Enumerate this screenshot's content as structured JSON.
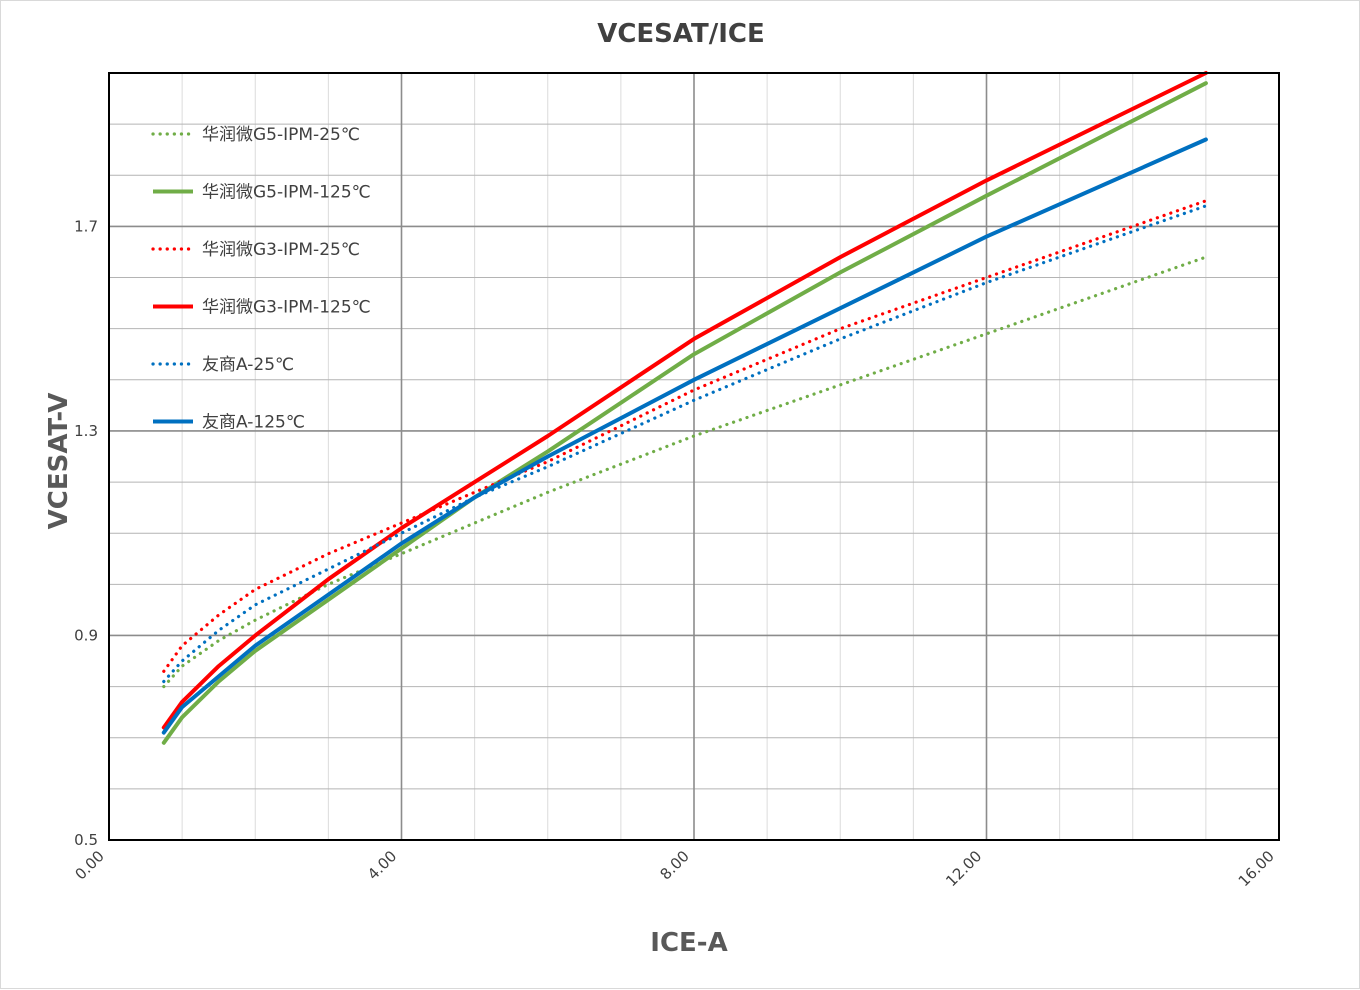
{
  "chart_data": {
    "type": "line",
    "title": "VCESAT/ICE",
    "xlabel": "ICE-A",
    "ylabel": "VCESAT-V",
    "xlim": [
      0,
      16
    ],
    "ylim": [
      0.5,
      2.0
    ],
    "x_ticks": [
      0,
      4,
      8,
      12,
      16
    ],
    "x_tick_labels": [
      "0.00",
      "4.00",
      "8.00",
      "12.00",
      "16.00"
    ],
    "y_ticks": [
      0.5,
      0.9,
      1.3,
      1.7
    ],
    "y_tick_labels": [
      "0.5",
      "0.9",
      "1.3",
      "1.7"
    ],
    "x_minor_step": 1,
    "y_minor_step": 0.1,
    "grid": true,
    "legend_position": "top-left",
    "series": [
      {
        "name": "华润微G5-IPM-25℃",
        "color": "#70ad47",
        "dash": "dotted",
        "x": [
          0.75,
          1,
          1.5,
          2,
          3,
          4,
          5,
          6,
          8,
          10,
          12,
          15
        ],
        "y": [
          0.8,
          0.84,
          0.89,
          0.93,
          1.0,
          1.06,
          1.12,
          1.18,
          1.29,
          1.39,
          1.49,
          1.64
        ]
      },
      {
        "name": "华润微G5-IPM-125℃",
        "color": "#70ad47",
        "dash": "solid",
        "x": [
          0.75,
          1,
          1.5,
          2,
          3,
          4,
          5,
          6,
          8,
          10,
          12,
          15
        ],
        "y": [
          0.69,
          0.74,
          0.81,
          0.87,
          0.97,
          1.07,
          1.17,
          1.26,
          1.45,
          1.61,
          1.76,
          1.98
        ]
      },
      {
        "name": "华润微G3-IPM-25℃",
        "color": "#ff0000",
        "dash": "dotted",
        "x": [
          0.75,
          1,
          1.5,
          2,
          3,
          4,
          5,
          6,
          8,
          10,
          12,
          15
        ],
        "y": [
          0.83,
          0.88,
          0.94,
          0.99,
          1.06,
          1.12,
          1.18,
          1.24,
          1.38,
          1.5,
          1.6,
          1.75
        ]
      },
      {
        "name": "华润微G3-IPM-125℃",
        "color": "#ff0000",
        "dash": "solid",
        "x": [
          0.75,
          1,
          1.5,
          2,
          3,
          4,
          5,
          6,
          8,
          10,
          12,
          15
        ],
        "y": [
          0.72,
          0.77,
          0.84,
          0.9,
          1.01,
          1.11,
          1.2,
          1.29,
          1.48,
          1.64,
          1.79,
          2.0
        ]
      },
      {
        "name": "友商A-25℃",
        "color": "#0070c0",
        "dash": "dotted",
        "x": [
          0.75,
          1,
          1.5,
          2,
          3,
          4,
          5,
          6,
          8,
          10,
          12,
          15
        ],
        "y": [
          0.81,
          0.85,
          0.91,
          0.96,
          1.03,
          1.1,
          1.17,
          1.23,
          1.36,
          1.48,
          1.59,
          1.74
        ]
      },
      {
        "name": "友商A-125℃",
        "color": "#0070c0",
        "dash": "solid",
        "x": [
          0.75,
          1,
          1.5,
          2,
          3,
          4,
          5,
          6,
          8,
          10,
          12,
          15
        ],
        "y": [
          0.71,
          0.76,
          0.82,
          0.88,
          0.98,
          1.08,
          1.17,
          1.25,
          1.4,
          1.54,
          1.68,
          1.87
        ]
      }
    ]
  }
}
